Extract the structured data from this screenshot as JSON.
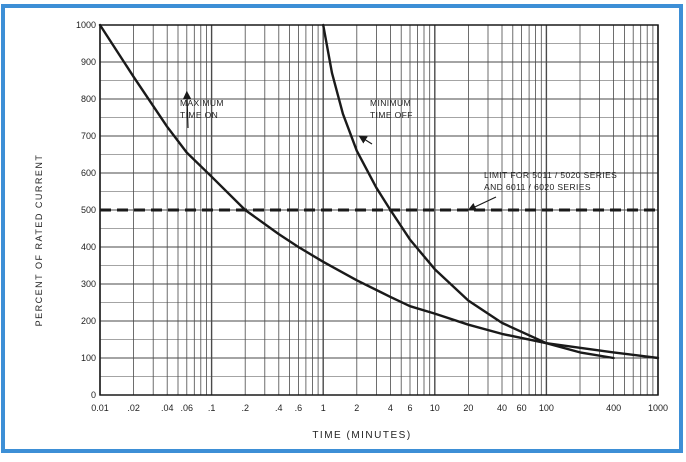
{
  "chart_data": {
    "type": "line",
    "xlabel": "TIME (MINUTES)",
    "ylabel": "PERCENT OF RATED CURRENT",
    "x_scale": "log",
    "xlim": [
      0.01,
      1000
    ],
    "ylim": [
      0,
      1000
    ],
    "grid": true,
    "x_tick_labels": [
      {
        "value": 0.01,
        "label": "0.01"
      },
      {
        "value": 0.02,
        "label": ".02"
      },
      {
        "value": 0.04,
        "label": ".04"
      },
      {
        "value": 0.06,
        "label": ".06"
      },
      {
        "value": 0.1,
        "label": ".1"
      },
      {
        "value": 0.2,
        "label": ".2"
      },
      {
        "value": 0.4,
        "label": ".4"
      },
      {
        "value": 0.6,
        "label": ".6"
      },
      {
        "value": 1,
        "label": "1"
      },
      {
        "value": 2,
        "label": "2"
      },
      {
        "value": 4,
        "label": "4"
      },
      {
        "value": 6,
        "label": "6"
      },
      {
        "value": 10,
        "label": "10"
      },
      {
        "value": 20,
        "label": "20"
      },
      {
        "value": 40,
        "label": "40"
      },
      {
        "value": 60,
        "label": "60"
      },
      {
        "value": 100,
        "label": "100"
      },
      {
        "value": 400,
        "label": "400"
      },
      {
        "value": 1000,
        "label": "1000"
      }
    ],
    "y_tick_labels": [
      {
        "value": 0,
        "label": "0"
      },
      {
        "value": 100,
        "label": "100"
      },
      {
        "value": 200,
        "label": "200"
      },
      {
        "value": 300,
        "label": "300"
      },
      {
        "value": 400,
        "label": "400"
      },
      {
        "value": 500,
        "label": "500"
      },
      {
        "value": 600,
        "label": "600"
      },
      {
        "value": 700,
        "label": "700"
      },
      {
        "value": 800,
        "label": "800"
      },
      {
        "value": 900,
        "label": "900"
      },
      {
        "value": 1000,
        "label": "1000"
      }
    ],
    "series": [
      {
        "name": "MAXIMUM TIME ON",
        "style": "solid",
        "x": [
          0.01,
          0.02,
          0.04,
          0.06,
          0.1,
          0.2,
          0.4,
          0.6,
          1,
          2,
          4,
          6,
          10,
          20,
          40,
          100,
          400,
          1000
        ],
        "y": [
          1000,
          860,
          725,
          655,
          590,
          500,
          435,
          400,
          360,
          310,
          265,
          240,
          220,
          190,
          165,
          140,
          115,
          100
        ]
      },
      {
        "name": "MINIMUM TIME OFF",
        "style": "solid",
        "x": [
          1,
          1.2,
          1.5,
          2,
          3,
          4,
          6,
          10,
          20,
          40,
          100,
          200,
          400
        ],
        "y": [
          1000,
          870,
          760,
          660,
          560,
          500,
          420,
          340,
          255,
          195,
          140,
          115,
          100
        ]
      },
      {
        "name": "LIMIT FOR 5011/5020 SERIES AND 6011/6020 SERIES",
        "style": "dashed",
        "x": [
          0.01,
          1000
        ],
        "y": [
          500,
          500
        ]
      }
    ],
    "annotations": [
      {
        "id": "max-on",
        "lines": [
          "MAXIMUM",
          "TIME ON"
        ],
        "target": [
          0.06,
          820
        ]
      },
      {
        "id": "min-off",
        "lines": [
          "MINIMUM",
          "TIME OFF"
        ],
        "target": [
          2.1,
          700
        ]
      },
      {
        "id": "limit",
        "lines": [
          "LIMIT FOR 5011 / 5020 SERIES",
          "AND 6011 / 6020 SERIES"
        ],
        "target": [
          20,
          500
        ]
      }
    ],
    "colors": {
      "frame": "#3d8fd6",
      "grid": "#4a4a4a",
      "curve": "#1a1a1a",
      "text": "#222222"
    }
  }
}
